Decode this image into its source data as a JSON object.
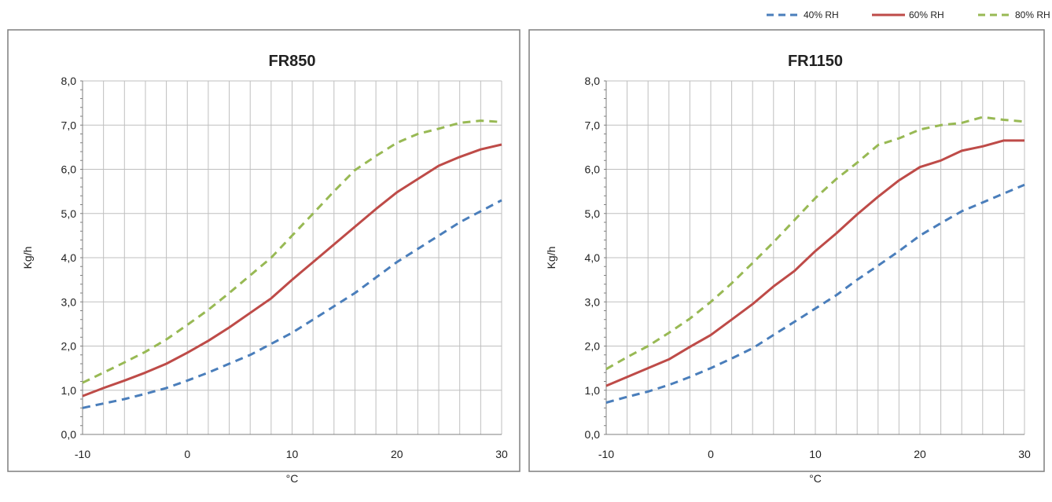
{
  "legend": [
    {
      "name": "40% RH",
      "color": "#4a7ebb",
      "dash": "dashed"
    },
    {
      "name": "60% RH",
      "color": "#be4b48",
      "dash": "solid"
    },
    {
      "name": "80% RH",
      "color": "#98b954",
      "dash": "dashed"
    }
  ],
  "chart_data": [
    {
      "type": "line",
      "title": "FR850",
      "xlabel": "°C",
      "ylabel": "Kg/h",
      "xlim": [
        -10,
        30
      ],
      "ylim": [
        0,
        8
      ],
      "xticks": [
        "-10",
        "0",
        "10",
        "20",
        "30"
      ],
      "yticks": [
        "0,0",
        "1,0",
        "2,0",
        "3,0",
        "4,0",
        "5,0",
        "6,0",
        "7,0",
        "8,0"
      ],
      "grid": true,
      "legend_position": "top-right",
      "x": [
        -10,
        -8,
        -6,
        -4,
        -2,
        0,
        2,
        4,
        6,
        8,
        10,
        12,
        14,
        16,
        18,
        20,
        22,
        24,
        26,
        28,
        30
      ],
      "series": [
        {
          "name": "40% RH",
          "color": "#4a7ebb",
          "style": "dashed",
          "values": [
            0.6,
            0.7,
            0.8,
            0.92,
            1.05,
            1.22,
            1.4,
            1.6,
            1.8,
            2.05,
            2.3,
            2.6,
            2.9,
            3.2,
            3.55,
            3.9,
            4.2,
            4.5,
            4.8,
            5.05,
            5.3
          ]
        },
        {
          "name": "60% RH",
          "color": "#be4b48",
          "style": "solid",
          "values": [
            0.87,
            1.05,
            1.22,
            1.4,
            1.6,
            1.85,
            2.12,
            2.42,
            2.75,
            3.08,
            3.5,
            3.9,
            4.3,
            4.7,
            5.1,
            5.48,
            5.78,
            6.08,
            6.28,
            6.45,
            6.56
          ]
        },
        {
          "name": "80% RH",
          "color": "#98b954",
          "style": "dashed",
          "values": [
            1.17,
            1.4,
            1.63,
            1.87,
            2.15,
            2.48,
            2.82,
            3.2,
            3.6,
            4.0,
            4.5,
            5.0,
            5.5,
            5.98,
            6.3,
            6.6,
            6.8,
            6.92,
            7.05,
            7.1,
            7.07
          ]
        }
      ]
    },
    {
      "type": "line",
      "title": "FR1150",
      "xlabel": "°C",
      "ylabel": "Kg/h",
      "xlim": [
        -10,
        30
      ],
      "ylim": [
        0,
        8
      ],
      "xticks": [
        "-10",
        "0",
        "10",
        "20",
        "30"
      ],
      "yticks": [
        "0,0",
        "1,0",
        "2,0",
        "3,0",
        "4,0",
        "5,0",
        "6,0",
        "7,0",
        "8,0"
      ],
      "grid": true,
      "legend_position": "top-right",
      "x": [
        -10,
        -8,
        -6,
        -4,
        -2,
        0,
        2,
        4,
        6,
        8,
        10,
        12,
        14,
        16,
        18,
        20,
        22,
        24,
        26,
        28,
        30
      ],
      "series": [
        {
          "name": "40% RH",
          "color": "#4a7ebb",
          "style": "dashed",
          "values": [
            0.72,
            0.85,
            0.97,
            1.12,
            1.3,
            1.5,
            1.72,
            1.95,
            2.25,
            2.55,
            2.85,
            3.15,
            3.5,
            3.82,
            4.15,
            4.5,
            4.78,
            5.05,
            5.25,
            5.45,
            5.65
          ]
        },
        {
          "name": "60% RH",
          "color": "#be4b48",
          "style": "solid",
          "values": [
            1.1,
            1.3,
            1.5,
            1.7,
            1.98,
            2.25,
            2.6,
            2.95,
            3.35,
            3.7,
            4.15,
            4.55,
            4.98,
            5.38,
            5.75,
            6.05,
            6.2,
            6.42,
            6.52,
            6.65,
            6.65
          ]
        },
        {
          "name": "80% RH",
          "color": "#98b954",
          "style": "dashed",
          "values": [
            1.48,
            1.75,
            2.0,
            2.3,
            2.62,
            3.0,
            3.42,
            3.88,
            4.35,
            4.85,
            5.35,
            5.78,
            6.15,
            6.55,
            6.7,
            6.9,
            7.0,
            7.05,
            7.18,
            7.12,
            7.08
          ]
        }
      ]
    }
  ]
}
